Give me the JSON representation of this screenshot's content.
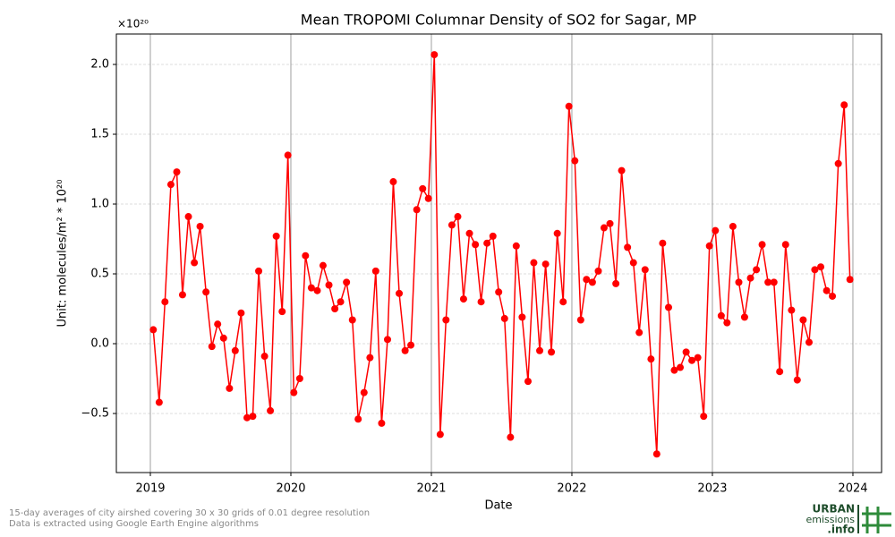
{
  "chart_data": {
    "type": "line",
    "title": "Mean TROPOMI Columnar Density of SO2 for Sagar, MP",
    "xlabel": "Date",
    "ylabel": "Unit: molecules/m² * 10²⁰",
    "y_offset_label": "×10²⁰",
    "color": "#ff0000",
    "grid": true,
    "x": [
      2019.021,
      2019.063,
      2019.104,
      2019.146,
      2019.188,
      2019.229,
      2019.271,
      2019.313,
      2019.354,
      2019.396,
      2019.438,
      2019.479,
      2019.521,
      2019.563,
      2019.604,
      2019.646,
      2019.688,
      2019.729,
      2019.771,
      2019.813,
      2019.854,
      2019.896,
      2019.938,
      2019.979,
      2020.021,
      2020.063,
      2020.104,
      2020.146,
      2020.188,
      2020.229,
      2020.271,
      2020.313,
      2020.354,
      2020.396,
      2020.438,
      2020.479,
      2020.521,
      2020.563,
      2020.604,
      2020.646,
      2020.688,
      2020.729,
      2020.771,
      2020.813,
      2020.854,
      2020.896,
      2020.938,
      2020.979,
      2021.021,
      2021.063,
      2021.104,
      2021.146,
      2021.188,
      2021.229,
      2021.271,
      2021.313,
      2021.354,
      2021.396,
      2021.438,
      2021.479,
      2021.521,
      2021.563,
      2021.604,
      2021.646,
      2021.688,
      2021.729,
      2021.771,
      2021.813,
      2021.854,
      2021.896,
      2021.938,
      2021.979,
      2022.021,
      2022.063,
      2022.104,
      2022.146,
      2022.188,
      2022.229,
      2022.271,
      2022.313,
      2022.354,
      2022.396,
      2022.438,
      2022.479,
      2022.521,
      2022.563,
      2022.604,
      2022.646,
      2022.688,
      2022.729,
      2022.771,
      2022.813,
      2022.854,
      2022.896,
      2022.938,
      2022.979,
      2023.021,
      2023.063,
      2023.104,
      2023.146,
      2023.188,
      2023.229,
      2023.271,
      2023.313,
      2023.354,
      2023.396,
      2023.438,
      2023.479,
      2023.521,
      2023.563,
      2023.604,
      2023.646,
      2023.688,
      2023.729,
      2023.771,
      2023.813,
      2023.854,
      2023.896,
      2023.938,
      2023.979
    ],
    "values": [
      0.1,
      -0.42,
      0.3,
      1.14,
      1.23,
      0.35,
      0.91,
      0.58,
      0.84,
      0.37,
      -0.02,
      0.14,
      0.04,
      -0.32,
      -0.05,
      0.22,
      -0.53,
      -0.52,
      0.52,
      -0.09,
      -0.48,
      0.77,
      0.23,
      1.35,
      -0.35,
      -0.25,
      0.63,
      0.4,
      0.38,
      0.56,
      0.42,
      0.25,
      0.3,
      0.44,
      0.17,
      -0.54,
      -0.35,
      -0.1,
      0.52,
      -0.57,
      0.03,
      1.16,
      0.36,
      -0.05,
      -0.01,
      0.96,
      1.11,
      1.04,
      2.07,
      -0.65,
      0.17,
      0.85,
      0.91,
      0.32,
      0.79,
      0.71,
      0.3,
      0.72,
      0.77,
      0.37,
      0.18,
      -0.67,
      0.7,
      0.19,
      -0.27,
      0.58,
      -0.05,
      0.57,
      -0.06,
      0.79,
      0.3,
      1.7,
      1.31,
      0.17,
      0.46,
      0.44,
      0.52,
      0.83,
      0.86,
      0.43,
      1.24,
      0.69,
      0.58,
      0.08,
      0.53,
      -0.11,
      -0.79,
      0.72,
      0.26,
      -0.19,
      -0.17,
      -0.06,
      -0.12,
      -0.1,
      -0.52,
      0.7,
      0.81,
      0.2,
      0.15,
      0.84,
      0.44,
      0.19,
      0.47,
      0.53,
      0.71,
      0.44,
      0.44,
      -0.2,
      0.71,
      0.24,
      -0.26,
      0.17,
      0.01,
      0.53,
      0.55,
      0.38,
      0.34,
      1.29,
      1.71,
      0.46
    ],
    "xlim": [
      2018.758,
      2024.204
    ],
    "xticks": [
      2019,
      2020,
      2021,
      2022,
      2023,
      2024
    ],
    "ylim": [
      -0.923,
      2.218
    ],
    "yticks": [
      {
        "value": -0.5,
        "label": "−0.5"
      },
      {
        "value": 0,
        "label": "0.0"
      },
      0.5,
      {
        "value": 1,
        "label": "1.0"
      },
      1.5,
      {
        "value": 2,
        "label": "2.0"
      }
    ],
    "notes": [
      "15-day averages of city airshed covering 30 x 30 grids of 0.01 degree resolution",
      "Data is extracted using Google Earth Engine algorithms"
    ],
    "logo": [
      "URBAN",
      "emissions",
      ".info"
    ]
  }
}
